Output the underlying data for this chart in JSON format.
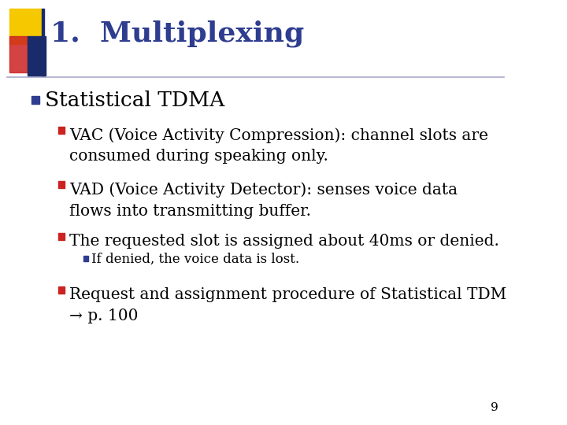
{
  "title": "1.  Multiplexing",
  "title_color": "#2E3D8F",
  "title_fontsize": 26,
  "background_color": "#FFFFFF",
  "accent_colors": {
    "yellow": "#F5C800",
    "red": "#CC2222",
    "blue_dark": "#1A2B6B",
    "blue_med": "#3355AA"
  },
  "bullet_l1_color": "#2E3D8F",
  "bullet_l2_color": "#CC2222",
  "bullet_l3_color": "#2E3D8F",
  "level1_text": "Statistical TDMA",
  "level1_fontsize": 19,
  "level2_items": [
    "VAC (Voice Activity Compression): channel slots are\nconsumed during speaking only.",
    "VAD (Voice Activity Detector): senses voice data\nflows into transmitting buffer.",
    "The requested slot is assigned about 40ms or denied."
  ],
  "level2_fontsize": 14.5,
  "level3_items": [
    "If denied, the voice data is lost."
  ],
  "level3_fontsize": 12,
  "level2b_items": [
    "Request and assignment procedure of Statistical TDM\n→ p. 100"
  ],
  "level2b_fontsize": 14.5,
  "text_color": "#000000",
  "page_number": "9",
  "page_fontsize": 11,
  "line_color": "#AAAACC"
}
